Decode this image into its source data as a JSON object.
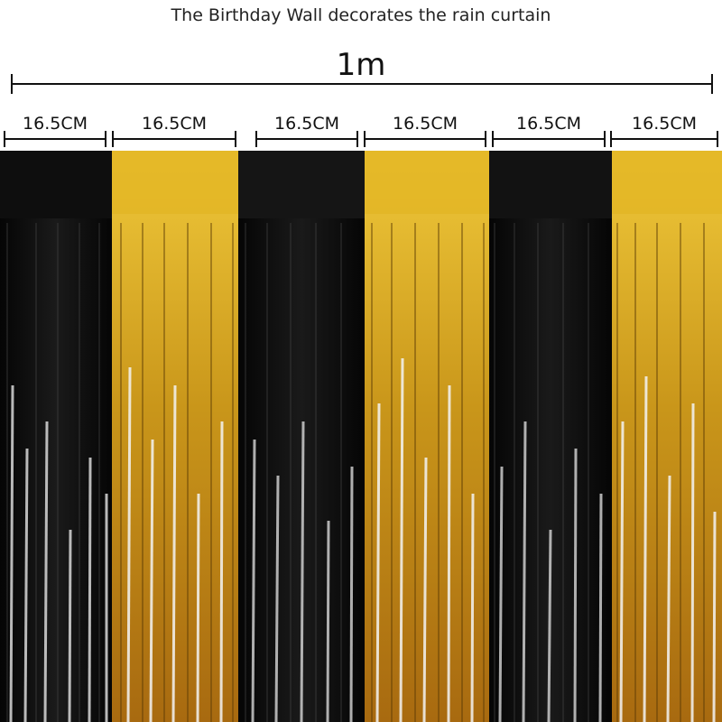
{
  "title": "The Birthday Wall decorates the rain curtain",
  "total_width_label": "1m",
  "panel_width_label": "16.5CM",
  "colors": {
    "black": "#0b0b0b",
    "gold": "#d4a51c",
    "silver_highlight": "#e8e8e8",
    "text": "#111111"
  },
  "panels": [
    {
      "color": "black",
      "label": "16.5CM"
    },
    {
      "color": "gold",
      "label": "16.5CM"
    },
    {
      "color": "black",
      "label": "16.5CM"
    },
    {
      "color": "gold",
      "label": "16.5CM"
    },
    {
      "color": "black",
      "label": "16.5CM"
    },
    {
      "color": "gold",
      "label": "16.5CM"
    }
  ]
}
